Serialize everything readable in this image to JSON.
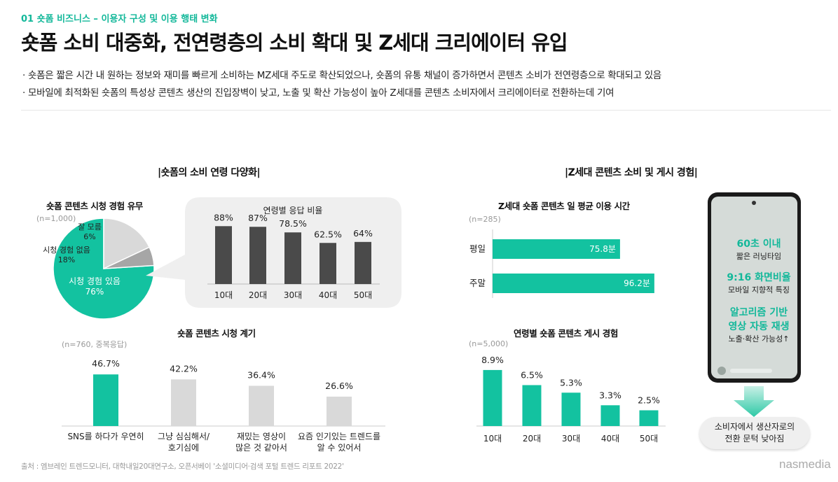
{
  "header": {
    "section_label": "01 숏폼 비즈니스 – 이용자 구성 및 이용 행태 변화",
    "title": "숏폼 소비 대중화, 전연령층의 소비 확대 및 Z세대 크리에이터 유입",
    "bullets": [
      "· 숏폼은 짧은 시간 내 원하는 정보와 재미를 빠르게 소비하는 MZ세대 주도로 확산되었으나, 숏폼의 유통 채널이 증가하면서 콘텐츠 소비가 전연령층으로 확대되고 있음",
      "· 모바일에 최적화된 숏폼의 특성상 콘텐츠 생산의 진입장벽이 낮고, 노출 및 확산 가능성이 높아 Z세대를 콘텐츠 소비자에서 크리에이터로 전환하는데 기여"
    ]
  },
  "left": {
    "subtitle": "|숏폼의 소비 연령 다양화|",
    "pie_title": "숏폼 콘텐츠 시청 경험 유무",
    "pie_note": "(n=1,000)",
    "bubble_title": "연령별 응답 비율",
    "bar2_title": "숏폼 콘텐츠 시청 계기",
    "bar2_note": "(n=760, 중복응답)"
  },
  "right": {
    "subtitle": "|Z세대 콘텐츠 소비 및 게시 경험|",
    "hbar_title": "Z세대 숏폼 콘텐츠 일 평균 이용 시간",
    "hbar_note": "(n=285)",
    "vbar_title": "연령별 숏폼 콘텐츠 게시 경험",
    "vbar_note": "(n=5,000)",
    "phone": {
      "f1_big": "60초 이내",
      "f1_small": "짧은 러닝타임",
      "f2_big": "9:16 화면비율",
      "f2_small": "모바일 지향적 특징",
      "f3_big1": "알고리즘 기반",
      "f3_big2": "영상 자동 재생",
      "f3_small": "노출·확산 가능성↑"
    },
    "pill_line1": "소비자에서 생산자로의",
    "pill_line2": "전환 문턱 낮아짐"
  },
  "footer": {
    "source": "출처 : 엠브레인 트렌드모니터, 대학내일20대연구소, 오픈서베이 '소셜미디어·검색 포털 트렌드 리포트 2022'",
    "logo": "nasmedia"
  },
  "colors": {
    "accent": "#13c2a0",
    "dark_bar": "#4a4a4a",
    "light_bar": "#d9d9d9",
    "pie_dark": "#a6a6a6",
    "pie_light": "#d9d9d9"
  },
  "chart_data": [
    {
      "type": "pie",
      "title": "숏폼 콘텐츠 시청 경험 유무",
      "slices": [
        {
          "label": "시청 경험 있음",
          "value": 76,
          "value_label": "76%"
        },
        {
          "label": "시청 경험 없음",
          "value": 18,
          "value_label": "18%"
        },
        {
          "label": "잘 모름",
          "value": 6,
          "value_label": "6%"
        }
      ]
    },
    {
      "type": "bar",
      "title": "연령별 응답 비율",
      "categories": [
        "10대",
        "20대",
        "30대",
        "40대",
        "50대"
      ],
      "values": [
        88,
        87,
        78.5,
        62.5,
        64
      ],
      "value_labels": [
        "88%",
        "87%",
        "78.5%",
        "62.5%",
        "64%"
      ],
      "ylim": [
        0,
        100
      ]
    },
    {
      "type": "bar",
      "title": "숏폼 콘텐츠 시청 계기",
      "categories": [
        [
          "SNS를 하다가 우연히"
        ],
        [
          "그냥 심심해서/",
          "호기심에"
        ],
        [
          "재밌는 영상이",
          "많은 것 같아서"
        ],
        [
          "요즘 인기있는 트렌드를",
          "알 수 있어서"
        ]
      ],
      "values": [
        46.7,
        42.2,
        36.4,
        26.6
      ],
      "value_labels": [
        "46.7%",
        "42.2%",
        "36.4%",
        "26.6%"
      ],
      "ylim": [
        0,
        50
      ]
    },
    {
      "type": "bar",
      "orientation": "horizontal",
      "title": "Z세대 숏폼 콘텐츠 일 평균 이용 시간",
      "categories": [
        "평일",
        "주말"
      ],
      "values": [
        75.8,
        96.2
      ],
      "value_labels": [
        "75.8분",
        "96.2분"
      ],
      "xlim": [
        0,
        100
      ]
    },
    {
      "type": "bar",
      "title": "연령별 숏폼 콘텐츠 게시 경험",
      "categories": [
        "10대",
        "20대",
        "30대",
        "40대",
        "50대"
      ],
      "values": [
        8.9,
        6.5,
        5.3,
        3.3,
        2.5
      ],
      "value_labels": [
        "8.9%",
        "6.5%",
        "5.3%",
        "3.3%",
        "2.5%"
      ],
      "ylim": [
        0,
        10
      ]
    }
  ]
}
